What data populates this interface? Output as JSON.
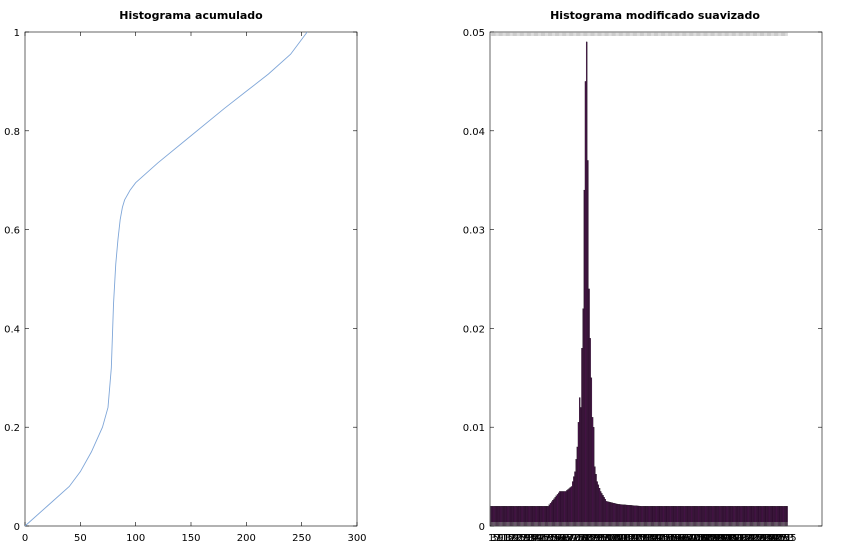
{
  "chart_data": [
    {
      "type": "line",
      "title": "Histograma acumulado",
      "xlabel": "",
      "ylabel": "",
      "xlim": [
        0,
        300
      ],
      "ylim": [
        0,
        1
      ],
      "xticks": [
        "0",
        "50",
        "100",
        "150",
        "200",
        "250",
        "300"
      ],
      "yticks": [
        "0",
        "0.2",
        "0.4",
        "0.6",
        "0.8",
        "1"
      ],
      "grid": false,
      "series": [
        {
          "color": "#7fa6d8",
          "x": [
            0,
            20,
            40,
            50,
            60,
            70,
            75,
            78,
            80,
            82,
            84,
            86,
            88,
            90,
            95,
            100,
            110,
            120,
            150,
            180,
            200,
            220,
            240,
            255
          ],
          "y": [
            0,
            0.04,
            0.08,
            0.11,
            0.15,
            0.2,
            0.24,
            0.32,
            0.45,
            0.53,
            0.58,
            0.62,
            0.645,
            0.66,
            0.68,
            0.695,
            0.715,
            0.735,
            0.79,
            0.845,
            0.88,
            0.915,
            0.955,
            1.0
          ]
        }
      ]
    },
    {
      "type": "bar",
      "title": "Histograma modificado suavizado",
      "xlabel": "",
      "ylabel": "",
      "ylim": [
        0,
        0.05
      ],
      "yticks": [
        "0",
        "0.01",
        "0.02",
        "0.03",
        "0.04",
        "0.05"
      ],
      "grid": false,
      "bar_color": "#4a154b",
      "x_tick_labels": "1 … 255 (256 overlapping labels, illegible)",
      "x": [
        1,
        26,
        50,
        60,
        65,
        70,
        73,
        75,
        77,
        78,
        79,
        80,
        81,
        82,
        83,
        84,
        85,
        86,
        87,
        88,
        89,
        90,
        92,
        95,
        100,
        110,
        130,
        160,
        200,
        255
      ],
      "values": [
        0.002,
        0.002,
        0.002,
        0.0035,
        0.0035,
        0.004,
        0.0055,
        0.008,
        0.013,
        0.012,
        0.018,
        0.022,
        0.034,
        0.045,
        0.049,
        0.037,
        0.024,
        0.019,
        0.015,
        0.011,
        0.01,
        0.006,
        0.0045,
        0.0035,
        0.0025,
        0.0022,
        0.002,
        0.002,
        0.002,
        0.002
      ]
    }
  ]
}
